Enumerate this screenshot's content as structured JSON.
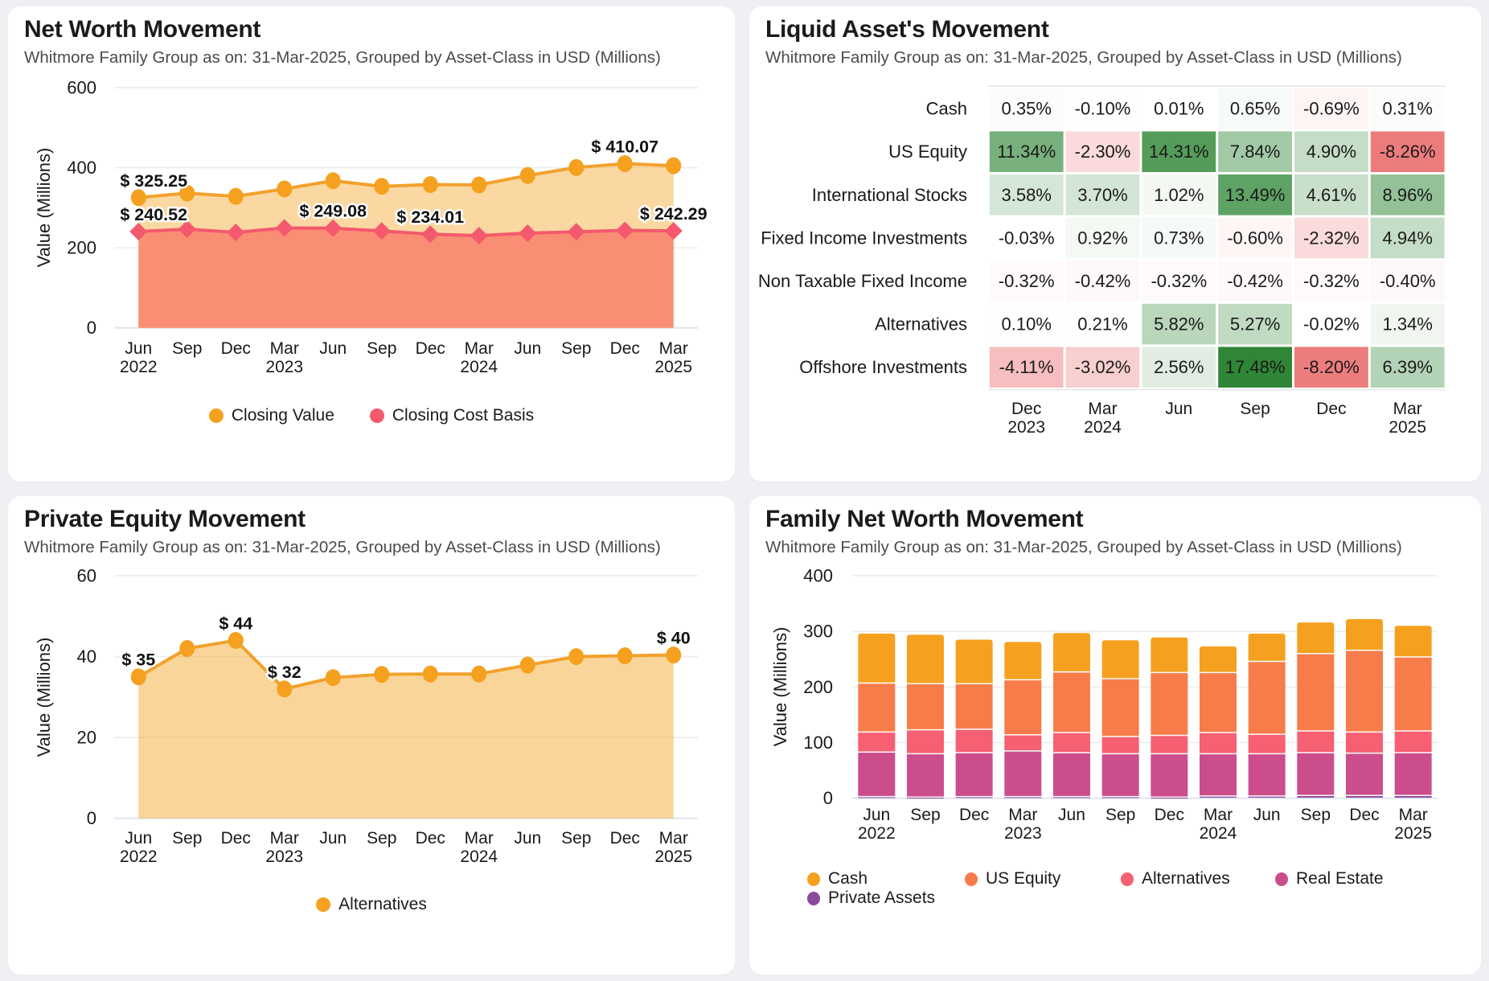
{
  "chart_data": [
    {
      "id": "net-worth",
      "type": "area",
      "title": "Net Worth Movement",
      "subtitle": "Whitmore Family Group as on: 31-Mar-2025, Grouped by Asset-Class in USD (Millions)",
      "ylabel": "Value (Millions)",
      "ylim": [
        0,
        600
      ],
      "yticks": [
        0,
        200,
        400,
        600
      ],
      "x": [
        [
          "Jun",
          "2022"
        ],
        [
          "Sep",
          ""
        ],
        [
          "Dec",
          ""
        ],
        [
          "Mar",
          "2023"
        ],
        [
          "Jun",
          ""
        ],
        [
          "Sep",
          ""
        ],
        [
          "Dec",
          ""
        ],
        [
          "Mar",
          "2024"
        ],
        [
          "Jun",
          ""
        ],
        [
          "Sep",
          ""
        ],
        [
          "Dec",
          ""
        ],
        [
          "Mar",
          "2025"
        ]
      ],
      "series": [
        {
          "name": "Closing Value",
          "color": "#F5A11F",
          "line_color": "#F2A12C",
          "marker": "circle",
          "area": "rgba(245,161,31,0.42)",
          "values": [
            325.25,
            336.5,
            328.5,
            347,
            367.5,
            353.5,
            358,
            357,
            380.5,
            400.5,
            410.07,
            405
          ],
          "point_labels": {
            "0": "$ 325.25",
            "10": "$ 410.07"
          }
        },
        {
          "name": "Closing Cost Basis",
          "color": "#F4596E",
          "line_color": "#F4596E",
          "marker": "diamond",
          "area": "#FA8E74",
          "values": [
            240.52,
            246.5,
            238.5,
            249.5,
            249.08,
            242,
            234.01,
            230.5,
            236.5,
            240,
            243.5,
            242.29
          ],
          "point_labels": {
            "0": "$ 240.52",
            "4": "$ 249.08",
            "6": "$ 234.01",
            "11": "$ 242.29"
          }
        }
      ],
      "legend_position": "bottom"
    },
    {
      "id": "liquid-assets",
      "type": "heatmap",
      "title": "Liquid Asset's Movement",
      "subtitle": "Whitmore Family Group as on: 31-Mar-2025, Grouped by Asset-Class in USD (Millions)",
      "rows": [
        "Cash",
        "US Equity",
        "International Stocks",
        "Fixed Income Investments",
        "Non Taxable Fixed Income",
        "Alternatives",
        "Offshore Investments"
      ],
      "columns": [
        [
          "Dec",
          "2023"
        ],
        [
          "Mar",
          "2024"
        ],
        [
          "Jun",
          ""
        ],
        [
          "Sep",
          ""
        ],
        [
          "Dec",
          ""
        ],
        [
          "Mar",
          "2025"
        ]
      ],
      "values": [
        [
          0.35,
          -0.1,
          0.01,
          0.65,
          -0.69,
          0.31
        ],
        [
          11.34,
          -2.3,
          14.31,
          7.84,
          4.9,
          -8.26
        ],
        [
          3.58,
          3.7,
          1.02,
          13.49,
          4.61,
          8.96
        ],
        [
          -0.03,
          0.92,
          0.73,
          -0.6,
          -2.32,
          4.94
        ],
        [
          -0.32,
          -0.42,
          -0.32,
          -0.42,
          -0.32,
          -0.4
        ],
        [
          0.1,
          0.21,
          5.82,
          5.27,
          -0.02,
          1.34
        ],
        [
          -4.11,
          -3.02,
          2.56,
          17.48,
          -8.2,
          6.39
        ]
      ],
      "unit": "%",
      "scale": {
        "pos_max": 17.48,
        "neg_max": 10,
        "pos_color": [
          47,
          134,
          54
        ],
        "neg_color": [
          232,
          96,
          96
        ]
      }
    },
    {
      "id": "private-equity",
      "type": "area",
      "title": "Private Equity Movement",
      "subtitle": "Whitmore Family Group as on: 31-Mar-2025, Grouped by Asset-Class in USD (Millions)",
      "ylabel": "Value (Millions)",
      "ylim": [
        0,
        60
      ],
      "yticks": [
        0,
        20,
        40,
        60
      ],
      "x": [
        [
          "Jun",
          "2022"
        ],
        [
          "Sep",
          ""
        ],
        [
          "Dec",
          ""
        ],
        [
          "Mar",
          "2023"
        ],
        [
          "Jun",
          ""
        ],
        [
          "Sep",
          ""
        ],
        [
          "Dec",
          ""
        ],
        [
          "Mar",
          "2024"
        ],
        [
          "Jun",
          ""
        ],
        [
          "Sep",
          ""
        ],
        [
          "Dec",
          ""
        ],
        [
          "Mar",
          "2025"
        ]
      ],
      "series": [
        {
          "name": "Alternatives",
          "color": "#F5A11F",
          "line_color": "#F2A12C",
          "marker": "circle",
          "area": "rgba(245,161,31,0.45)",
          "values": [
            35,
            42,
            44,
            32,
            34.8,
            35.6,
            35.7,
            35.7,
            37.9,
            40,
            40.2,
            40.4
          ],
          "point_labels": {
            "0": "$ 35",
            "2": "$ 44",
            "3": "$ 32",
            "11": "$ 40"
          }
        }
      ],
      "legend_position": "bottom"
    },
    {
      "id": "family-net-worth",
      "type": "stacked_bar",
      "title": "Family Net Worth Movement",
      "subtitle": "Whitmore Family Group as on: 31-Mar-2025, Grouped by Asset-Class in USD (Millions)",
      "ylabel": "Value (Millions)",
      "ylim": [
        0,
        400
      ],
      "yticks": [
        0,
        100,
        200,
        300,
        400
      ],
      "x": [
        [
          "Jun",
          "2022"
        ],
        [
          "Sep",
          ""
        ],
        [
          "Dec",
          ""
        ],
        [
          "Mar",
          "2023"
        ],
        [
          "Jun",
          ""
        ],
        [
          "Sep",
          ""
        ],
        [
          "Dec",
          ""
        ],
        [
          "Mar",
          "2024"
        ],
        [
          "Jun",
          ""
        ],
        [
          "Sep",
          ""
        ],
        [
          "Dec",
          ""
        ],
        [
          "Mar",
          "2025"
        ]
      ],
      "series": [
        {
          "name": "Private Assets",
          "color": "#8C4A9C",
          "values": [
            3,
            2,
            3,
            3,
            3,
            3,
            2,
            4,
            4,
            5,
            5,
            5
          ]
        },
        {
          "name": "Real Estate",
          "color": "#CB4D8C",
          "values": [
            80,
            78,
            79,
            82,
            79,
            77,
            78,
            76,
            76,
            77,
            76,
            77
          ]
        },
        {
          "name": "Alternatives",
          "color": "#F75F72",
          "values": [
            36,
            43,
            42,
            29,
            36,
            31,
            33,
            38,
            35,
            39,
            38,
            39
          ]
        },
        {
          "name": "US Equity",
          "color": "#F87C49",
          "values": [
            88,
            83,
            82,
            99,
            109,
            104,
            113,
            108,
            131,
            139,
            147,
            133
          ]
        },
        {
          "name": "Cash",
          "color": "#F5A11F",
          "values": [
            89,
            88,
            79,
            68,
            70,
            69,
            63,
            47,
            50,
            56,
            56,
            56
          ]
        }
      ],
      "legend_order": [
        "Cash",
        "US Equity",
        "Alternatives",
        "Real Estate",
        "Private Assets"
      ]
    }
  ]
}
